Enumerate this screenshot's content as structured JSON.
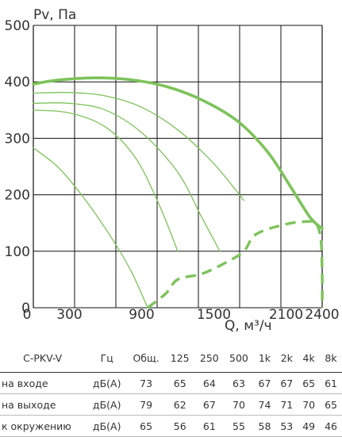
{
  "chart_data": {
    "type": "line",
    "ylabel": "Pv, Па",
    "xlabel": "Q, м³/ч",
    "xlim": [
      0,
      2400
    ],
    "ylim": [
      0,
      500
    ],
    "x_ticks": [
      "0",
      "300",
      "900",
      "1500",
      "2100",
      "2400"
    ],
    "x_tick_values": [
      0,
      300,
      900,
      1500,
      2100,
      2400
    ],
    "y_ticks": [
      "0",
      "100",
      "200",
      "300",
      "400",
      "500"
    ],
    "y_tick_values": [
      0,
      100,
      200,
      300,
      400,
      500
    ],
    "grid": true,
    "series": [
      {
        "style": "thick",
        "color": "#7dc35a",
        "x": [
          0,
          200,
          500,
          800,
          1100,
          1400,
          1700,
          1950,
          2150,
          2300,
          2400
        ],
        "y": [
          396,
          403,
          407,
          404,
          392,
          368,
          330,
          275,
          210,
          160,
          140
        ]
      },
      {
        "style": "thin",
        "color": "#7dc35a",
        "x": [
          0,
          300,
          600,
          900,
          1200,
          1500,
          1750
        ],
        "y": [
          380,
          381,
          375,
          355,
          315,
          255,
          190
        ]
      },
      {
        "style": "thin",
        "color": "#7dc35a",
        "x": [
          0,
          300,
          600,
          900,
          1200,
          1400,
          1550
        ],
        "y": [
          362,
          362,
          350,
          310,
          240,
          160,
          100
        ]
      },
      {
        "style": "thin",
        "color": "#7dc35a",
        "x": [
          0,
          300,
          600,
          850,
          1050,
          1200
        ],
        "y": [
          350,
          345,
          320,
          265,
          180,
          100
        ]
      },
      {
        "style": "thin",
        "color": "#7dc35a",
        "x": [
          0,
          200,
          400,
          600,
          800,
          950
        ],
        "y": [
          283,
          250,
          200,
          140,
          70,
          0
        ]
      },
      {
        "style": "dashed",
        "color": "#7dc35a",
        "x": [
          950,
          1100,
          1200,
          1400,
          1600,
          1750,
          1850,
          2100,
          2300,
          2350,
          2390,
          2400,
          2400
        ],
        "y": [
          0,
          25,
          50,
          60,
          80,
          100,
          130,
          148,
          153,
          150,
          120,
          60,
          0
        ]
      }
    ]
  },
  "noise_table": {
    "headers": [
      "C-PKV-V",
      "Гц",
      "Общ.",
      "125",
      "250",
      "500",
      "1k",
      "2k",
      "4k",
      "8k"
    ],
    "rows": [
      [
        "на входе",
        "дБ(A)",
        "73",
        "65",
        "64",
        "63",
        "67",
        "67",
        "65",
        "61"
      ],
      [
        "на выходе",
        "дБ(A)",
        "79",
        "62",
        "67",
        "70",
        "74",
        "71",
        "70",
        "65"
      ],
      [
        "к окружению",
        "дБ(A)",
        "65",
        "56",
        "61",
        "55",
        "58",
        "53",
        "49",
        "46"
      ]
    ]
  }
}
